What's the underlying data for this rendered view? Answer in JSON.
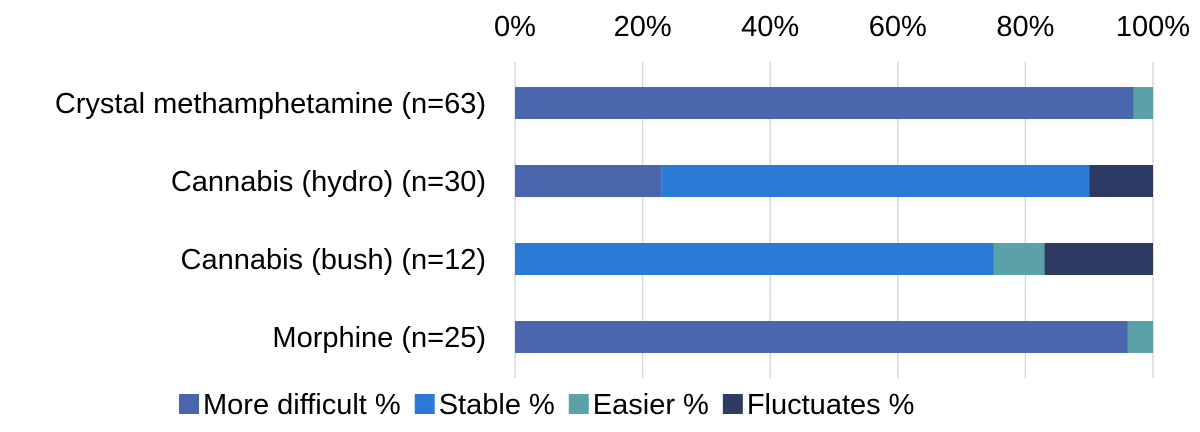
{
  "chart_data": {
    "type": "bar",
    "orientation": "horizontal",
    "stacked": true,
    "title": "",
    "xlabel": "",
    "ylabel": "",
    "xlim": [
      0,
      100
    ],
    "x_ticks": [
      "0%",
      "20%",
      "40%",
      "60%",
      "80%",
      "100%"
    ],
    "x_axis_position": "top",
    "grid": true,
    "legend_position": "bottom",
    "categories": [
      "Crystal methamphetamine (n=63)",
      "Cannabis (hydro) (n=30)",
      "Cannabis (bush) (n=12)",
      "Morphine (n=25)"
    ],
    "series": [
      {
        "name": "More difficult %",
        "color": "#4a66ad",
        "values": [
          97,
          23,
          0,
          96
        ]
      },
      {
        "name": "Stable %",
        "color": "#2b7bd6",
        "values": [
          0,
          67,
          75,
          0
        ]
      },
      {
        "name": "Easier %",
        "color": "#5aa2a8",
        "values": [
          3,
          0,
          8,
          4
        ]
      },
      {
        "name": "Fluctuates %",
        "color": "#2d3b63",
        "values": [
          0,
          10,
          17,
          0
        ]
      }
    ]
  }
}
